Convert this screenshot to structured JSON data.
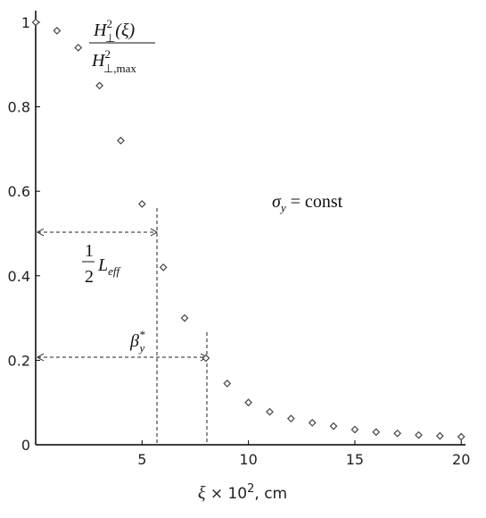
{
  "chart_data": {
    "type": "scatter",
    "y_label": {
      "numerator": {
        "base": "H",
        "sup": "2",
        "sub": "⊥",
        "arg": "(ξ)"
      },
      "denominator": {
        "base": "H",
        "sup": "2",
        "sub": "⊥,max"
      }
    },
    "x_label": {
      "symbol": "ξ",
      "times": " × 10",
      "sup": "2",
      "unit": ", cm"
    },
    "annotations": {
      "sigma": {
        "base": "σ",
        "sub": "y",
        "rest": " = const"
      },
      "half_leff": {
        "num": "1",
        "den": "2",
        "base": "L",
        "sub": "eff"
      },
      "beta": {
        "base": "β",
        "sub": "y",
        "sup": "*"
      }
    },
    "x": [
      0,
      1,
      2,
      3,
      4,
      5,
      6,
      7,
      8,
      9,
      10,
      11,
      12,
      13,
      14,
      15,
      16,
      17,
      18,
      19,
      20
    ],
    "values": [
      1,
      0.98,
      0.94,
      0.85,
      0.72,
      0.57,
      0.42,
      0.3,
      0.205,
      0.145,
      0.1,
      0.078,
      0.062,
      0.052,
      0.044,
      0.036,
      0.03,
      0.027,
      0.023,
      0.021,
      0.019
    ],
    "color": "#444444",
    "xlim": [
      0,
      20.2
    ],
    "ylim": [
      0,
      1.02
    ],
    "xticks": [
      5,
      10,
      15,
      20
    ],
    "yticks": [
      0,
      0.2,
      0.4,
      0.6,
      0.8,
      1
    ]
  }
}
